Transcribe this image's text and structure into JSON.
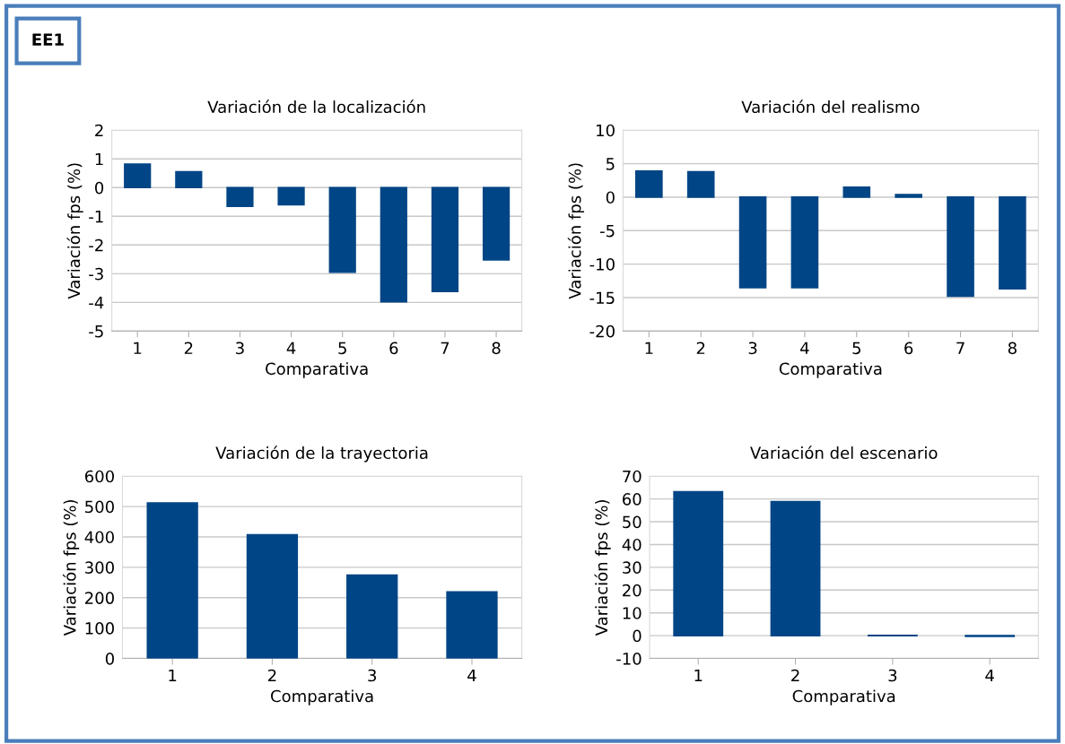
{
  "chart_data": [
    {
      "type": "bar",
      "title": "Variación de la localización",
      "xlabel": "Comparativa",
      "ylabel": "Variación fps (%)",
      "annotations": [
        "EE1"
      ],
      "categories": [
        "1",
        "2",
        "3",
        "4",
        "5",
        "6",
        "7",
        "8"
      ],
      "values": [
        0.82,
        0.55,
        -0.65,
        -0.6,
        -2.95,
        -3.98,
        -3.62,
        -2.52
      ],
      "color": "#004586",
      "ylim": [
        -5,
        2
      ],
      "yticks": [
        -5,
        -4,
        -3,
        -2,
        -1,
        0,
        1,
        2
      ],
      "grid": "y"
    },
    {
      "type": "bar",
      "title": "Variación del realismo",
      "xlabel": "Comparativa",
      "ylabel": "Variación fps (%)",
      "categories": [
        "1",
        "2",
        "3",
        "4",
        "5",
        "6",
        "7",
        "8"
      ],
      "values": [
        3.9,
        3.8,
        -13.5,
        -13.5,
        1.5,
        0.4,
        -14.8,
        -13.7
      ],
      "color": "#004586",
      "ylim": [
        -20,
        10
      ],
      "yticks": [
        -20,
        -15,
        -10,
        -5,
        0,
        5,
        10
      ],
      "grid": "y"
    },
    {
      "type": "bar",
      "title": "Variación de la trayectoria",
      "xlabel": "Comparativa",
      "ylabel": "Variación fps (%)",
      "categories": [
        "1",
        "2",
        "3",
        "4"
      ],
      "values": [
        512,
        407,
        274,
        219
      ],
      "color": "#004586",
      "ylim": [
        0,
        600
      ],
      "yticks": [
        0,
        100,
        200,
        300,
        400,
        500,
        600
      ],
      "grid": "y"
    },
    {
      "type": "bar",
      "title": "Variación del escenario",
      "xlabel": "Comparativa",
      "ylabel": "Variación fps (%)",
      "categories": [
        "1",
        "2",
        "3",
        "4"
      ],
      "values": [
        63.2,
        58.8,
        0.1,
        -0.3
      ],
      "color": "#004586",
      "ylim": [
        -10,
        70
      ],
      "yticks": [
        -10,
        0,
        10,
        20,
        30,
        40,
        50,
        60,
        70
      ],
      "grid": "y"
    }
  ]
}
